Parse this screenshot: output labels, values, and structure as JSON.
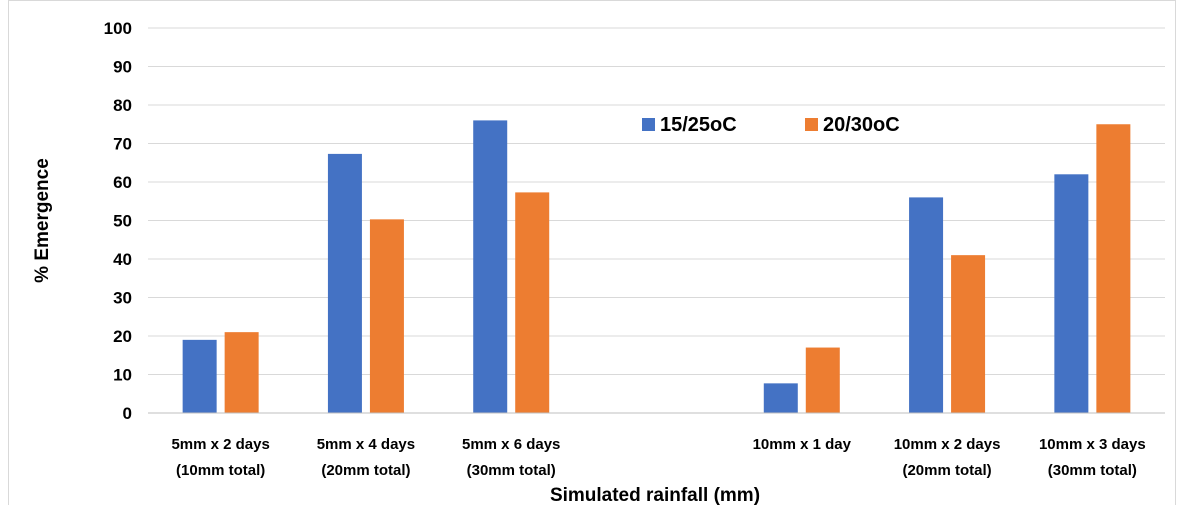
{
  "chart_data": {
    "type": "bar",
    "categories": [
      [
        "5mm x 2 days",
        "(10mm total)"
      ],
      [
        "5mm x 4 days",
        "(20mm total)"
      ],
      [
        "5mm x 6 days",
        "(30mm total)"
      ],
      [
        "",
        ""
      ],
      [
        "10mm x 1 day",
        ""
      ],
      [
        "10mm x 2 days",
        "(20mm total)"
      ],
      [
        "10mm x 3 days",
        "(30mm total)"
      ]
    ],
    "series": [
      {
        "name": "15/25oC",
        "color": "#4472c4",
        "values": [
          19,
          67.3,
          76,
          null,
          7.7,
          56,
          62
        ]
      },
      {
        "name": "20/30oC",
        "color": "#ed7d31",
        "values": [
          21,
          50.3,
          57.3,
          null,
          17,
          41,
          75
        ]
      }
    ],
    "xlabel": "Simulated rainfall (mm)",
    "ylabel": "% Emergence",
    "ylim": [
      0,
      100
    ],
    "yticks": [
      0,
      10,
      20,
      30,
      40,
      50,
      60,
      70,
      80,
      90,
      100
    ],
    "grid": true,
    "legend_position": "top-center"
  }
}
